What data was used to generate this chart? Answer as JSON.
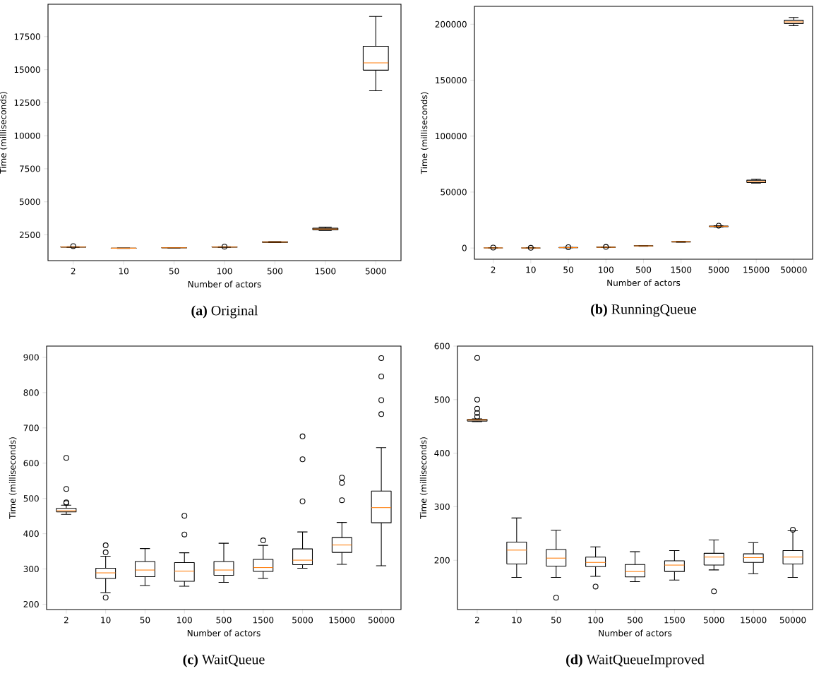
{
  "chart_data": [
    {
      "type": "box",
      "title": "**(a)** Original",
      "xlabel": "Number of actors",
      "ylabel": "Time (milliseconds)",
      "color": "#000000",
      "categories": [
        "2",
        "10",
        "50",
        "100",
        "500",
        "1500",
        "5000"
      ],
      "ylim": [
        550,
        19950
      ],
      "yticks": [
        2500,
        5000,
        7500,
        10000,
        12500,
        15000,
        17500
      ],
      "boxes": [
        {
          "low": 1550,
          "q1": 1565,
          "median": 1577,
          "q3": 1590,
          "high": 1600,
          "outliers": [
            1650
          ]
        },
        {
          "low": 1470,
          "q1": 1480,
          "median": 1490,
          "q3": 1500,
          "high": 1510
        },
        {
          "low": 1505,
          "q1": 1512,
          "median": 1520,
          "q3": 1528,
          "high": 1535
        },
        {
          "low": 1555,
          "q1": 1565,
          "median": 1577,
          "q3": 1590,
          "high": 1600,
          "outliers": [
            1610
          ]
        },
        {
          "low": 1910,
          "q1": 1930,
          "median": 1950,
          "q3": 1975,
          "high": 1990
        },
        {
          "low": 2830,
          "q1": 2880,
          "median": 2944,
          "q3": 3000,
          "high": 3080
        },
        {
          "low": 13400,
          "q1": 14960,
          "median": 15510,
          "q3": 16770,
          "high": 19025
        }
      ]
    },
    {
      "type": "box",
      "title": "**(b)** RunningQueue",
      "xlabel": "Number of actors",
      "ylabel": "Time (milliseconds)",
      "color": "#000000",
      "categories": [
        "2",
        "10",
        "50",
        "100",
        "500",
        "1500",
        "5000",
        "15000",
        "50000"
      ],
      "ylim": [
        -10000,
        216000
      ],
      "yticks": [
        0,
        50000,
        100000,
        150000,
        200000
      ],
      "boxes": [
        {
          "low": 0,
          "q1": 50,
          "median": 100,
          "q3": 150,
          "high": 300,
          "outliers": [
            400
          ]
        },
        {
          "low": 0,
          "q1": 20,
          "median": 50,
          "q3": 80,
          "high": 150,
          "outliers": [
            200
          ]
        },
        {
          "low": 200,
          "q1": 300,
          "median": 400,
          "q3": 500,
          "high": 600,
          "outliers": [
            700
          ]
        },
        {
          "low": 500,
          "q1": 600,
          "median": 700,
          "q3": 800,
          "high": 900,
          "outliers": [
            1000
          ]
        },
        {
          "low": 1600,
          "q1": 1750,
          "median": 1900,
          "q3": 2050,
          "high": 2200
        },
        {
          "low": 5200,
          "q1": 5400,
          "median": 5600,
          "q3": 5800,
          "high": 6000
        },
        {
          "low": 18800,
          "q1": 19100,
          "median": 19400,
          "q3": 19700,
          "high": 20000,
          "outliers": [
            20000
          ]
        },
        {
          "low": 58000,
          "q1": 58500,
          "median": 59500,
          "q3": 60600,
          "high": 61500
        },
        {
          "low": 198700,
          "q1": 200600,
          "median": 202100,
          "q3": 203600,
          "high": 206100
        }
      ]
    },
    {
      "type": "box",
      "title": "**(c)** WaitQueue",
      "xlabel": "Number of actors",
      "ylabel": "Time (milliseconds)",
      "color": "#000000",
      "categories": [
        "2",
        "10",
        "50",
        "100",
        "500",
        "1500",
        "5000",
        "15000",
        "50000"
      ],
      "ylim": [
        185,
        932
      ],
      "yticks": [
        200,
        300,
        400,
        500,
        600,
        700,
        800,
        900
      ],
      "boxes": [
        {
          "low": 455,
          "q1": 462,
          "median": 465,
          "q3": 472,
          "high": 481,
          "outliers": [
            615,
            527,
            489,
            487
          ]
        },
        {
          "low": 233,
          "q1": 273,
          "median": 289,
          "q3": 302,
          "high": 336,
          "outliers": [
            367,
            347,
            219
          ]
        },
        {
          "low": 253,
          "q1": 278,
          "median": 297,
          "q3": 321,
          "high": 358
        },
        {
          "low": 251,
          "q1": 265,
          "median": 294,
          "q3": 318,
          "high": 346,
          "outliers": [
            451,
            398
          ]
        },
        {
          "low": 262,
          "q1": 282,
          "median": 297,
          "q3": 321,
          "high": 373
        },
        {
          "low": 273,
          "q1": 293,
          "median": 304,
          "q3": 327,
          "high": 367,
          "outliers": [
            381
          ]
        },
        {
          "low": 302,
          "q1": 312,
          "median": 325,
          "q3": 357,
          "high": 405,
          "outliers": [
            676,
            611,
            492
          ]
        },
        {
          "low": 313,
          "q1": 347,
          "median": 368,
          "q3": 389,
          "high": 432,
          "outliers": [
            559,
            544,
            495
          ]
        },
        {
          "low": 309,
          "q1": 431,
          "median": 474,
          "q3": 521,
          "high": 644,
          "outliers": [
            898,
            846,
            779,
            739
          ]
        }
      ]
    },
    {
      "type": "box",
      "title": "**(d)** WaitQueueImproved",
      "xlabel": "Number of actors",
      "ylabel": "Time (milliseconds)",
      "color": "#000000",
      "categories": [
        "2",
        "10",
        "50",
        "100",
        "500",
        "1500",
        "5000",
        "15000",
        "50000"
      ],
      "ylim": [
        108,
        600
      ],
      "yticks": [
        200,
        300,
        400,
        500,
        600
      ],
      "boxes": [
        {
          "low": 459,
          "q1": 460,
          "median": 462,
          "q3": 463,
          "high": 464,
          "outliers": [
            578,
            500,
            483,
            475,
            468
          ]
        },
        {
          "low": 168,
          "q1": 193,
          "median": 219,
          "q3": 234,
          "high": 279
        },
        {
          "low": 168,
          "q1": 189,
          "median": 204,
          "q3": 220,
          "high": 256,
          "outliers": [
            130
          ]
        },
        {
          "low": 170,
          "q1": 188,
          "median": 196,
          "q3": 206,
          "high": 225,
          "outliers": [
            151
          ]
        },
        {
          "low": 160,
          "q1": 169,
          "median": 179,
          "q3": 192,
          "high": 216
        },
        {
          "low": 163,
          "q1": 179,
          "median": 191,
          "q3": 199,
          "high": 218
        },
        {
          "low": 182,
          "q1": 191,
          "median": 206,
          "q3": 213,
          "high": 238,
          "outliers": [
            142
          ]
        },
        {
          "low": 175,
          "q1": 196,
          "median": 205,
          "q3": 212,
          "high": 233
        },
        {
          "low": 168,
          "q1": 193,
          "median": 206,
          "q3": 218,
          "high": 255,
          "outliers": [
            257
          ]
        }
      ]
    }
  ]
}
